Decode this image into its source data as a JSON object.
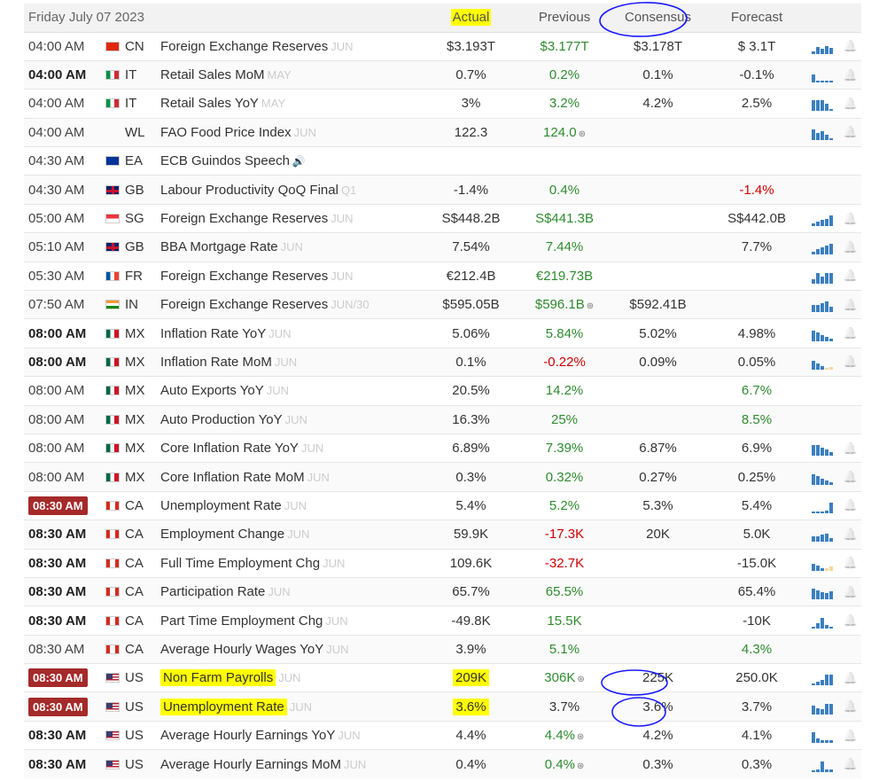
{
  "header": {
    "date": "Friday July 07 2023",
    "col_actual": "Actual",
    "col_previous": "Previous",
    "col_consensus": "Consensus",
    "col_forecast": "Forecast"
  },
  "colors": {
    "positive": "#2e8b2e",
    "negative": "#cc0000",
    "time_badge": "#a52a2a",
    "highlight": "#ffff00",
    "annotation": "#1a1aff",
    "bar": "#3b7fbf"
  },
  "rows": [
    {
      "time": "04:00 AM",
      "bold": false,
      "badge": false,
      "flag": "CN",
      "country": "CN",
      "event": "Foreign Exchange Reserves",
      "ref": "JUN",
      "actual": "$3.193T",
      "previous": "$3.177T",
      "prev_color": "green",
      "prev_rev": false,
      "consensus": "$3.178T",
      "forecast": "$ 3.1T",
      "fc_color": "dark",
      "bars": [
        3,
        8,
        6,
        9,
        7
      ],
      "bell": true
    },
    {
      "time": "04:00 AM",
      "bold": true,
      "badge": false,
      "flag": "IT",
      "country": "IT",
      "event": "Retail Sales MoM",
      "ref": "MAY",
      "actual": "0.7%",
      "previous": "0.2%",
      "prev_color": "green",
      "prev_rev": false,
      "consensus": "0.1%",
      "forecast": "-0.1%",
      "fc_color": "dark",
      "bars": [
        9,
        0,
        0,
        0,
        2
      ],
      "bell": true
    },
    {
      "time": "04:00 AM",
      "bold": false,
      "badge": false,
      "flag": "IT",
      "country": "IT",
      "event": "Retail Sales YoY",
      "ref": "MAY",
      "actual": "3%",
      "previous": "3.2%",
      "prev_color": "green",
      "prev_rev": false,
      "consensus": "4.2%",
      "forecast": "2.5%",
      "fc_color": "dark",
      "bars": [
        12,
        12,
        12,
        8,
        0
      ],
      "bell": true
    },
    {
      "time": "04:00 AM",
      "bold": false,
      "badge": false,
      "flag": "WL",
      "country": "WL",
      "event": "FAO Food Price Index",
      "ref": "JUN",
      "actual": "122.3",
      "previous": "124.0",
      "prev_color": "green",
      "prev_rev": true,
      "consensus": "",
      "forecast": "",
      "fc_color": "dark",
      "bars": [
        12,
        8,
        10,
        6,
        2
      ],
      "bell": true
    },
    {
      "time": "04:30 AM",
      "bold": false,
      "badge": false,
      "flag": "EA",
      "country": "EA",
      "event": "ECB Guindos Speech",
      "ref": "",
      "speaker": true,
      "actual": "",
      "previous": "",
      "prev_color": "green",
      "prev_rev": false,
      "consensus": "",
      "forecast": "",
      "fc_color": "dark",
      "bars": [],
      "bell": false
    },
    {
      "time": "04:30 AM",
      "bold": false,
      "badge": false,
      "flag": "GB",
      "country": "GB",
      "event": "Labour Productivity QoQ Final",
      "ref": "Q1",
      "actual": "-1.4%",
      "previous": "0.4%",
      "prev_color": "green",
      "prev_rev": false,
      "consensus": "",
      "forecast": "-1.4%",
      "fc_color": "red",
      "bars": [],
      "bell": false
    },
    {
      "time": "05:00 AM",
      "bold": false,
      "badge": false,
      "flag": "SG",
      "country": "SG",
      "event": "Foreign Exchange Reserves",
      "ref": "JUN",
      "actual": "S$448.2B",
      "previous": "S$441.3B",
      "prev_color": "green",
      "prev_rev": false,
      "consensus": "",
      "forecast": "S$442.0B",
      "fc_color": "dark",
      "bars": [
        3,
        5,
        7,
        8,
        12
      ],
      "bell": true
    },
    {
      "time": "05:10 AM",
      "bold": false,
      "badge": false,
      "flag": "GB",
      "country": "GB",
      "event": "BBA Mortgage Rate",
      "ref": "JUN",
      "actual": "7.54%",
      "previous": "7.44%",
      "prev_color": "green",
      "prev_rev": false,
      "consensus": "",
      "forecast": "7.7%",
      "fc_color": "dark",
      "bars": [
        3,
        6,
        8,
        10,
        12
      ],
      "bell": true
    },
    {
      "time": "05:30 AM",
      "bold": false,
      "badge": false,
      "flag": "FR",
      "country": "FR",
      "event": "Foreign Exchange Reserves",
      "ref": "JUN",
      "actual": "€212.4B",
      "previous": "€219.73B",
      "prev_color": "green",
      "prev_rev": false,
      "consensus": "",
      "forecast": "",
      "fc_color": "dark",
      "bars": [
        5,
        12,
        8,
        12,
        12
      ],
      "bell": true
    },
    {
      "time": "07:50 AM",
      "bold": false,
      "badge": false,
      "flag": "IN",
      "country": "IN",
      "event": "Foreign Exchange Reserves",
      "ref": "JUN/30",
      "actual": "$595.05B",
      "previous": "$596.1B",
      "prev_color": "green",
      "prev_rev": true,
      "consensus": "$592.41B",
      "forecast": "",
      "fc_color": "dark",
      "bars": [
        8,
        8,
        10,
        12,
        6
      ],
      "bell": true
    },
    {
      "time": "08:00 AM",
      "bold": true,
      "badge": false,
      "flag": "MX",
      "country": "MX",
      "event": "Inflation Rate YoY",
      "ref": "JUN",
      "actual": "5.06%",
      "previous": "5.84%",
      "prev_color": "green",
      "prev_rev": false,
      "consensus": "5.02%",
      "forecast": "4.98%",
      "fc_color": "dark",
      "bars": [
        12,
        10,
        7,
        5,
        3
      ],
      "bell": true
    },
    {
      "time": "08:00 AM",
      "bold": true,
      "badge": false,
      "flag": "MX",
      "country": "MX",
      "event": "Inflation Rate MoM",
      "ref": "JUN",
      "actual": "0.1%",
      "previous": "-0.22%",
      "prev_color": "red",
      "prev_rev": false,
      "consensus": "0.09%",
      "forecast": "0.05%",
      "fc_color": "dark",
      "bars": [
        10,
        7,
        4,
        2,
        3
      ],
      "light": [
        3,
        4
      ],
      "bell": true
    },
    {
      "time": "08:00 AM",
      "bold": false,
      "badge": false,
      "flag": "MX",
      "country": "MX",
      "event": "Auto Exports YoY",
      "ref": "JUN",
      "actual": "20.5%",
      "previous": "14.2%",
      "prev_color": "green",
      "prev_rev": false,
      "consensus": "",
      "forecast": "6.7%",
      "fc_color": "green",
      "bars": [],
      "bell": false
    },
    {
      "time": "08:00 AM",
      "bold": false,
      "badge": false,
      "flag": "MX",
      "country": "MX",
      "event": "Auto Production YoY",
      "ref": "JUN",
      "actual": "16.3%",
      "previous": "25%",
      "prev_color": "green",
      "prev_rev": false,
      "consensus": "",
      "forecast": "8.5%",
      "fc_color": "green",
      "bars": [],
      "bell": false
    },
    {
      "time": "08:00 AM",
      "bold": false,
      "badge": false,
      "flag": "MX",
      "country": "MX",
      "event": "Core Inflation Rate YoY",
      "ref": "JUN",
      "actual": "6.89%",
      "previous": "7.39%",
      "prev_color": "green",
      "prev_rev": false,
      "consensus": "6.87%",
      "forecast": "6.9%",
      "fc_color": "dark",
      "bars": [
        12,
        12,
        9,
        7,
        4
      ],
      "bell": true
    },
    {
      "time": "08:00 AM",
      "bold": false,
      "badge": false,
      "flag": "MX",
      "country": "MX",
      "event": "Core Inflation Rate MoM",
      "ref": "JUN",
      "actual": "0.3%",
      "previous": "0.32%",
      "prev_color": "green",
      "prev_rev": false,
      "consensus": "0.27%",
      "forecast": "0.25%",
      "fc_color": "dark",
      "bars": [
        12,
        10,
        7,
        5,
        3
      ],
      "bell": true
    },
    {
      "time": "08:30 AM",
      "bold": true,
      "badge": true,
      "flag": "CA",
      "country": "CA",
      "event": "Unemployment Rate",
      "ref": "JUN",
      "actual": "5.4%",
      "previous": "5.2%",
      "prev_color": "green",
      "prev_rev": false,
      "consensus": "5.3%",
      "forecast": "5.4%",
      "fc_color": "dark",
      "bars": [
        2,
        2,
        2,
        3,
        12
      ],
      "bell": true
    },
    {
      "time": "08:30 AM",
      "bold": true,
      "badge": false,
      "flag": "CA",
      "country": "CA",
      "event": "Employment Change",
      "ref": "JUN",
      "actual": "59.9K",
      "previous": "-17.3K",
      "prev_color": "red",
      "prev_rev": false,
      "consensus": "20K",
      "forecast": "5.0K",
      "fc_color": "dark",
      "bars": [
        6,
        6,
        8,
        9,
        4
      ],
      "bell": true
    },
    {
      "time": "08:30 AM",
      "bold": true,
      "badge": false,
      "flag": "CA",
      "country": "CA",
      "event": "Full Time Employment Chg",
      "ref": "JUN",
      "actual": "109.6K",
      "previous": "-32.7K",
      "prev_color": "red",
      "prev_rev": false,
      "consensus": "",
      "forecast": "-15.0K",
      "fc_color": "dark",
      "bars": [
        8,
        6,
        3,
        3,
        5
      ],
      "light": [
        3,
        4
      ],
      "bell": true
    },
    {
      "time": "08:30 AM",
      "bold": true,
      "badge": false,
      "flag": "CA",
      "country": "CA",
      "event": "Participation Rate",
      "ref": "JUN",
      "actual": "65.7%",
      "previous": "65.5%",
      "prev_color": "green",
      "prev_rev": false,
      "consensus": "",
      "forecast": "65.4%",
      "fc_color": "dark",
      "bars": [
        12,
        10,
        8,
        7,
        9
      ],
      "bell": true
    },
    {
      "time": "08:30 AM",
      "bold": true,
      "badge": false,
      "flag": "CA",
      "country": "CA",
      "event": "Part Time Employment Chg",
      "ref": "JUN",
      "actual": "-49.8K",
      "previous": "15.5K",
      "prev_color": "green",
      "prev_rev": false,
      "consensus": "",
      "forecast": "-10K",
      "fc_color": "dark",
      "bars": [
        2,
        6,
        12,
        4,
        2
      ],
      "bell": true
    },
    {
      "time": "08:30 AM",
      "bold": false,
      "badge": false,
      "flag": "CA",
      "country": "CA",
      "event": "Average Hourly Wages YoY",
      "ref": "JUN",
      "actual": "3.9%",
      "previous": "5.1%",
      "prev_color": "green",
      "prev_rev": false,
      "consensus": "",
      "forecast": "4.3%",
      "fc_color": "green",
      "bars": [],
      "bell": false
    },
    {
      "time": "08:30 AM",
      "bold": true,
      "badge": true,
      "flag": "US",
      "country": "US",
      "event": "Non Farm Payrolls",
      "ref": "JUN",
      "actual": "209K",
      "previous": "306K",
      "prev_color": "green",
      "prev_rev": true,
      "consensus": "225K",
      "forecast": "250.0K",
      "fc_color": "dark",
      "bars": [
        2,
        4,
        6,
        12,
        12
      ],
      "bell": true,
      "hl_event": true,
      "hl_actual": true
    },
    {
      "time": "08:30 AM",
      "bold": true,
      "badge": true,
      "flag": "US",
      "country": "US",
      "event": "Unemployment Rate",
      "ref": "JUN",
      "actual": "3.6%",
      "previous": "3.7%",
      "prev_color": "dark",
      "prev_rev": false,
      "consensus": "3.6%",
      "forecast": "3.7%",
      "fc_color": "dark",
      "bars": [
        10,
        7,
        6,
        12,
        12
      ],
      "bell": true,
      "hl_event": true,
      "hl_actual": true
    },
    {
      "time": "08:30 AM",
      "bold": true,
      "badge": false,
      "flag": "US",
      "country": "US",
      "event": "Average Hourly Earnings YoY",
      "ref": "JUN",
      "actual": "4.4%",
      "previous": "4.4%",
      "prev_color": "green",
      "prev_rev": true,
      "consensus": "4.2%",
      "forecast": "4.1%",
      "fc_color": "dark",
      "bars": [
        12,
        5,
        3,
        3,
        3
      ],
      "bell": true
    },
    {
      "time": "08:30 AM",
      "bold": true,
      "badge": false,
      "flag": "US",
      "country": "US",
      "event": "Average Hourly Earnings MoM",
      "ref": "JUN",
      "actual": "0.4%",
      "previous": "0.4%",
      "prev_color": "green",
      "prev_rev": true,
      "consensus": "0.3%",
      "forecast": "0.3%",
      "fc_color": "dark",
      "bars": [
        2,
        3,
        12,
        3,
        3
      ],
      "bell": true
    }
  ]
}
